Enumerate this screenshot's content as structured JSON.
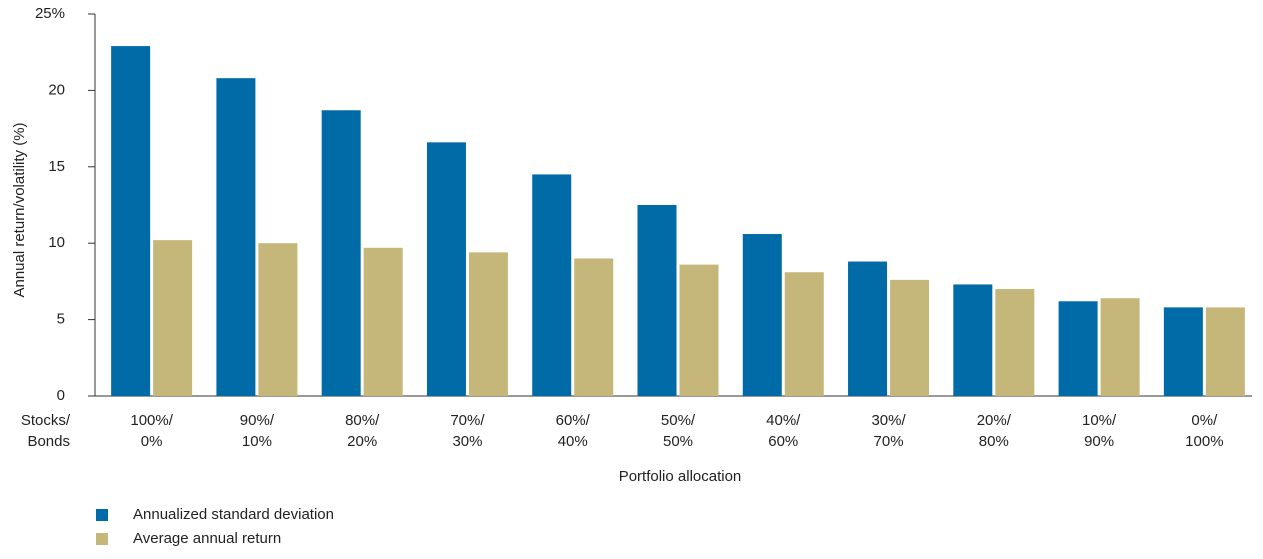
{
  "chart_data": {
    "type": "bar",
    "y_axis_label": "Annual return/volatility (%)",
    "x_axis_label": "Portfolio allocation",
    "category_header": [
      "Stocks/",
      "Bonds"
    ],
    "categories": [
      [
        "100%/",
        "0%"
      ],
      [
        "90%/",
        "10%"
      ],
      [
        "80%/",
        "20%"
      ],
      [
        "70%/",
        "30%"
      ],
      [
        "60%/",
        "40%"
      ],
      [
        "50%/",
        "50%"
      ],
      [
        "40%/",
        "60%"
      ],
      [
        "30%/",
        "70%"
      ],
      [
        "20%/",
        "80%"
      ],
      [
        "10%/",
        "90%"
      ],
      [
        "0%/",
        "100%"
      ]
    ],
    "series": [
      {
        "name": "Annualized standard deviation",
        "color": "#006ba6",
        "values": [
          22.9,
          20.8,
          18.7,
          16.6,
          14.5,
          12.5,
          10.6,
          8.8,
          7.3,
          6.2,
          5.8
        ]
      },
      {
        "name": "Average annual return",
        "color": "#c5b77a",
        "values": [
          10.2,
          10.0,
          9.7,
          9.4,
          9.0,
          8.6,
          8.1,
          7.6,
          7.0,
          6.4,
          5.8
        ]
      }
    ],
    "ylim": [
      0,
      25
    ],
    "yticks": [
      0,
      5,
      10,
      15,
      20,
      {
        "value": 25,
        "label": "25%"
      }
    ],
    "grid": false
  }
}
